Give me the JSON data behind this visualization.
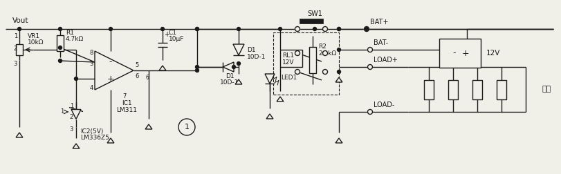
{
  "bg_color": "#f0f0e8",
  "line_color": "#1a1a1a",
  "text_color": "#1a1a1a",
  "labels": {
    "vout": "Vout",
    "vr1": "VR1",
    "vr1_val": "10kΩ",
    "r1": "R1",
    "r1_val": "4.7kΩ",
    "c1": "C1",
    "c1_val": "10μF",
    "d1": "D1",
    "d1_val": "10D-1",
    "ic1": "IC1",
    "ic1_name": "LM311",
    "ic2": "IC2(5V)",
    "ic2_name": "LM336Z5",
    "rl1": "RL1",
    "rl1_val": "12V",
    "r2": "R2",
    "r2_val": "2.2kΩ",
    "sw1": "SW1",
    "bat_plus": "BAT+",
    "bat_minus": "BAT-",
    "load_plus": "LOAD+",
    "load_minus": "LOAD-",
    "led1": "LED1",
    "v12": "12V",
    "neg": "负荷",
    "circle1": "1",
    "pin8": "8",
    "pin5": "5",
    "pin6": "6",
    "pin7": "7",
    "pin4": "4",
    "pin1": "1",
    "pin3": "3",
    "pin2": "2"
  }
}
